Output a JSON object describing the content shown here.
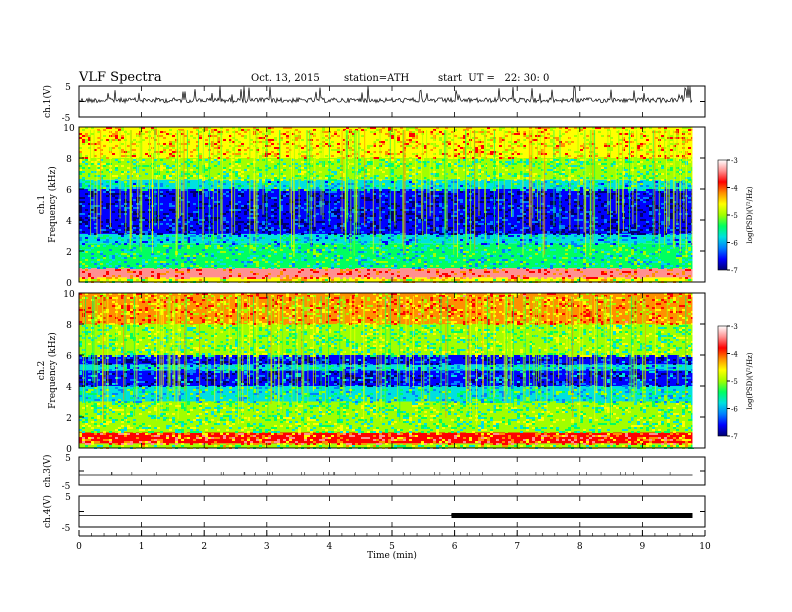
{
  "header": {
    "title": "VLF Spectra",
    "date": "Oct. 13, 2015",
    "station": "station=ATH",
    "start": "start  UT =   22: 30: 0"
  },
  "colors": {
    "colormap": [
      "#000070",
      "#0000ff",
      "#0080ff",
      "#00e0e0",
      "#00ff60",
      "#a0ff00",
      "#ffff00",
      "#ff9000",
      "#ff0000",
      "#ff9090",
      "#ffffff"
    ],
    "trace": "#000000",
    "frame": "#000000"
  },
  "chart_data": [
    {
      "type": "line",
      "panel": "ch.1",
      "ylabel": "ch.1(V)",
      "ylim": [
        -5,
        5
      ],
      "yticks": [
        "5",
        "-5"
      ],
      "x": [
        0,
        1,
        2,
        3,
        4,
        5,
        6,
        7,
        8,
        9,
        9.8
      ],
      "values": [
        0.4,
        0.2,
        0.3,
        0.2,
        0.3,
        0.2,
        0.3,
        0.2,
        0.3,
        0.2,
        0.3
      ],
      "note": "noisy trace near 0 V with spikes to about +5 V"
    },
    {
      "type": "heatmap",
      "panel": "ch.1",
      "ylabel": "ch.1\nFrequency  (kHz)",
      "ylim": [
        0,
        10
      ],
      "yticks": [
        "0",
        "2",
        "4",
        "6",
        "8",
        "10"
      ],
      "colorbar": {
        "label": "log(PSD)(V²/Hz)",
        "range": [
          -7,
          -3
        ],
        "ticks": [
          "-3",
          "-4",
          "-5",
          "-6",
          "-7"
        ]
      },
      "bands_khz": [
        {
          "from": 0,
          "to": 0.3,
          "level": -4.5
        },
        {
          "from": 0.3,
          "to": 0.9,
          "level": -3.2
        },
        {
          "from": 0.9,
          "to": 2.5,
          "level": -5.4
        },
        {
          "from": 2.5,
          "to": 3.1,
          "level": -5.8
        },
        {
          "from": 3.1,
          "to": 6.0,
          "level": -6.7
        },
        {
          "from": 6.0,
          "to": 6.6,
          "level": -5.6
        },
        {
          "from": 6.6,
          "to": 8.0,
          "level": -5.0
        },
        {
          "from": 8.0,
          "to": 10.0,
          "level": -4.2
        }
      ]
    },
    {
      "type": "heatmap",
      "panel": "ch.2",
      "ylabel": "ch.2\nFrequency  (kHz)",
      "ylim": [
        0,
        10
      ],
      "yticks": [
        "0",
        "2",
        "4",
        "6",
        "8",
        "10"
      ],
      "colorbar": {
        "label": "log(PSD)(V²/Hz)",
        "range": [
          -7,
          -3
        ],
        "ticks": [
          "-3",
          "-4",
          "-5",
          "-6",
          "-7"
        ]
      },
      "bands_khz": [
        {
          "from": 0,
          "to": 0.3,
          "level": -4.8
        },
        {
          "from": 0.3,
          "to": 1.0,
          "level": -3.6
        },
        {
          "from": 1.0,
          "to": 3.0,
          "level": -5.0
        },
        {
          "from": 3.0,
          "to": 4.0,
          "level": -5.5
        },
        {
          "from": 4.0,
          "to": 5.0,
          "level": -6.5
        },
        {
          "from": 5.0,
          "to": 5.4,
          "level": -5.8
        },
        {
          "from": 5.4,
          "to": 6.0,
          "level": -6.6
        },
        {
          "from": 6.0,
          "to": 8.0,
          "level": -5.0
        },
        {
          "from": 8.0,
          "to": 10.0,
          "level": -4.0
        }
      ]
    },
    {
      "type": "line",
      "panel": "ch.3",
      "ylabel": "ch.3(V)",
      "ylim": [
        -5,
        5
      ],
      "yticks": [
        "5",
        "-5"
      ],
      "x": [
        0,
        9.8
      ],
      "values": [
        0,
        0
      ]
    },
    {
      "type": "line",
      "panel": "ch.4",
      "ylabel": "ch.4(V)",
      "ylim": [
        -5,
        5
      ],
      "yticks": [
        "5",
        "-5"
      ],
      "x": [
        0,
        5.95,
        5.95,
        9.8
      ],
      "values": [
        0,
        0,
        0.2,
        0.2
      ],
      "note": "thick noisy band from about 6 to 9.8 min"
    }
  ],
  "xaxis": {
    "label": "Time  (min)",
    "range": [
      0,
      10
    ],
    "ticks": [
      "0",
      "1",
      "2",
      "3",
      "4",
      "5",
      "6",
      "7",
      "8",
      "9",
      "10"
    ],
    "data_end": 9.8
  }
}
